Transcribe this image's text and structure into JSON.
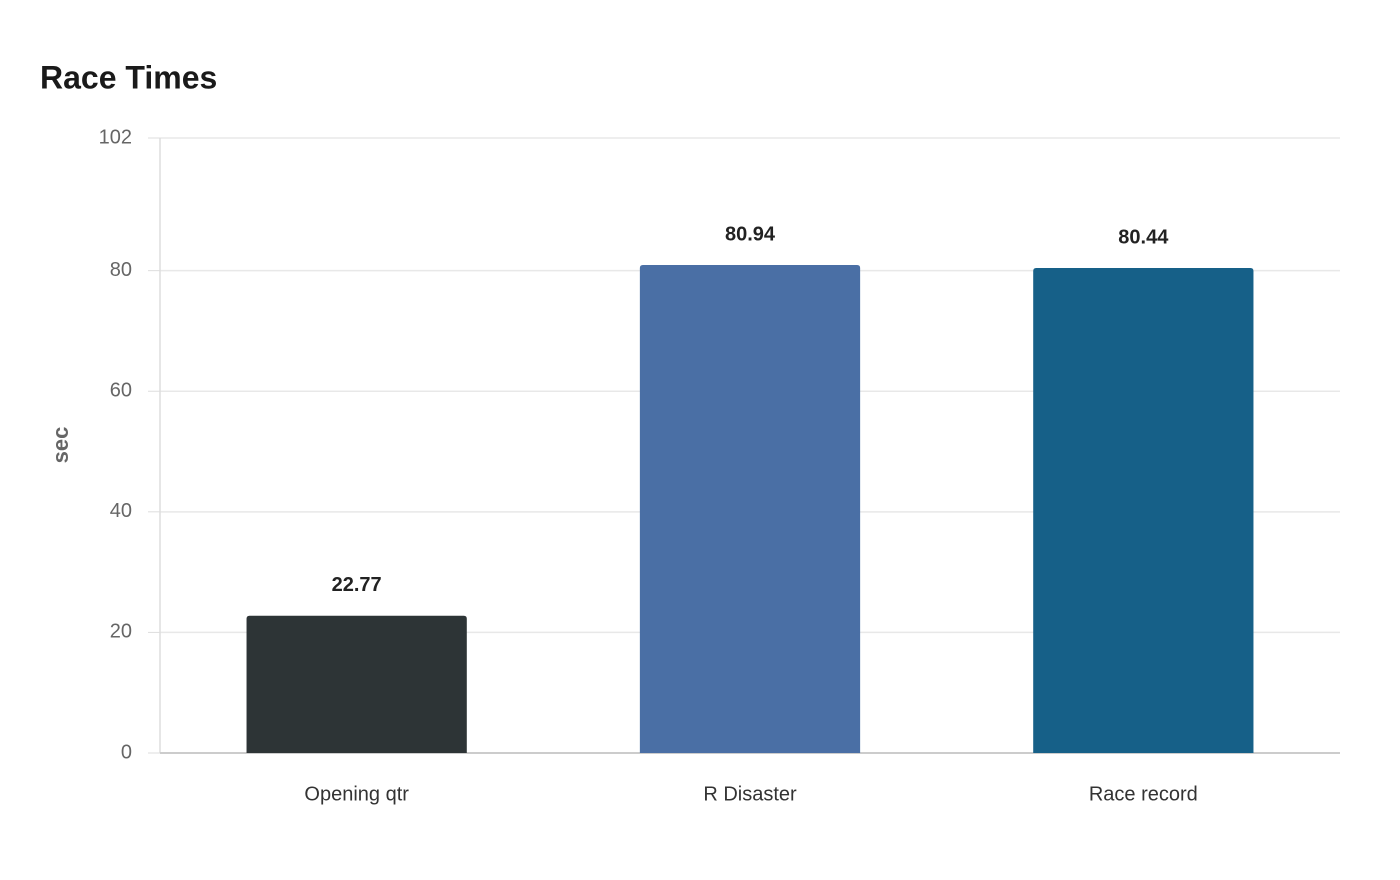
{
  "chart_data": {
    "type": "bar",
    "title": "Race Times",
    "y_label": "sec",
    "categories": [
      "Opening qtr",
      "R Disaster",
      "Race record"
    ],
    "values": [
      22.77,
      80.94,
      80.44
    ],
    "colors": [
      "#2d3436",
      "#4a6fa5",
      "#166088"
    ],
    "ylim": [
      0,
      102
    ],
    "yticks": [
      0,
      20,
      40,
      60,
      80,
      102
    ],
    "grid": true
  }
}
